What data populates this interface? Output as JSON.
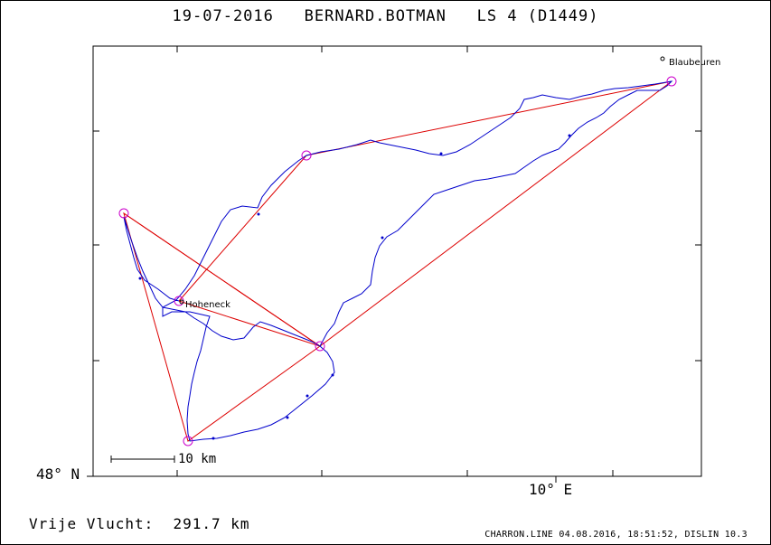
{
  "header": {
    "date": "19-07-2016",
    "pilot": "BERNARD.BOTMAN",
    "task": "LS 4 (D1449)"
  },
  "axes": {
    "lat_label": "48° N",
    "lon_label": "10° E"
  },
  "scale": {
    "label": "10 km"
  },
  "places": [
    {
      "name": "Blaubeuren"
    },
    {
      "name": "Hoheneck"
    }
  ],
  "footer": {
    "distance_label": "Vrije Vlucht:",
    "distance_value": "291.7 km",
    "software": "CHARRON.LINE 04.08.2016, 18:51:52, DISLIN 10.3"
  },
  "colors": {
    "track": "#0000cc",
    "task_line": "#dd0000",
    "turnpoint": "#cc00cc",
    "frame": "#000000"
  }
}
